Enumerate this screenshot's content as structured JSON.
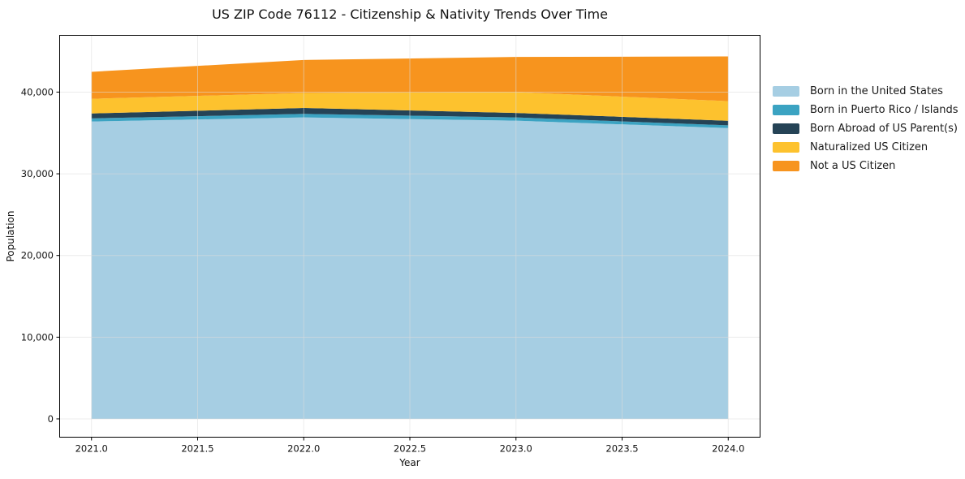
{
  "chart_data": {
    "type": "area",
    "stacked": true,
    "title": "US ZIP Code 76112 - Citizenship & Nativity Trends Over Time",
    "xlabel": "Year",
    "ylabel": "Population",
    "x": [
      2021,
      2022,
      2023,
      2024
    ],
    "series": [
      {
        "name": "Born in the United States",
        "color": "#a6cee3",
        "values": [
          36400,
          36900,
          36500,
          35600
        ]
      },
      {
        "name": "Born in Puerto Rico / Islands",
        "color": "#3ba3c2",
        "values": [
          380,
          430,
          400,
          330
        ]
      },
      {
        "name": "Born Abroad of US Parent(s)",
        "color": "#254356",
        "values": [
          600,
          730,
          550,
          560
        ]
      },
      {
        "name": "Naturalized US Citizen",
        "color": "#fdc22e",
        "values": [
          1800,
          1830,
          2550,
          2400
        ]
      },
      {
        "name": "Not a US Citizen",
        "color": "#f7941e",
        "values": [
          3300,
          4040,
          4300,
          5480
        ]
      }
    ],
    "stacked_totals": [
      42480,
      43930,
      44300,
      44370
    ],
    "xticks": {
      "values": [
        2021.0,
        2021.5,
        2022.0,
        2022.5,
        2023.0,
        2023.5,
        2024.0
      ],
      "labels": [
        "2021.0",
        "2021.5",
        "2022.0",
        "2022.5",
        "2023.0",
        "2023.5",
        "2024.0"
      ]
    },
    "yticks": {
      "values": [
        0,
        10000,
        20000,
        30000,
        40000
      ],
      "labels": [
        "0",
        "10,000",
        "20,000",
        "30,000",
        "40,000"
      ]
    },
    "xlim": [
      2020.85,
      2024.15
    ],
    "ylim": [
      -2240,
      46950
    ],
    "grid": true,
    "legend_position": "right of plot, top"
  },
  "colors": {
    "background": "#ffffff",
    "grid": "#dddddd",
    "spine": "#000000",
    "tick_text": "#111111"
  }
}
